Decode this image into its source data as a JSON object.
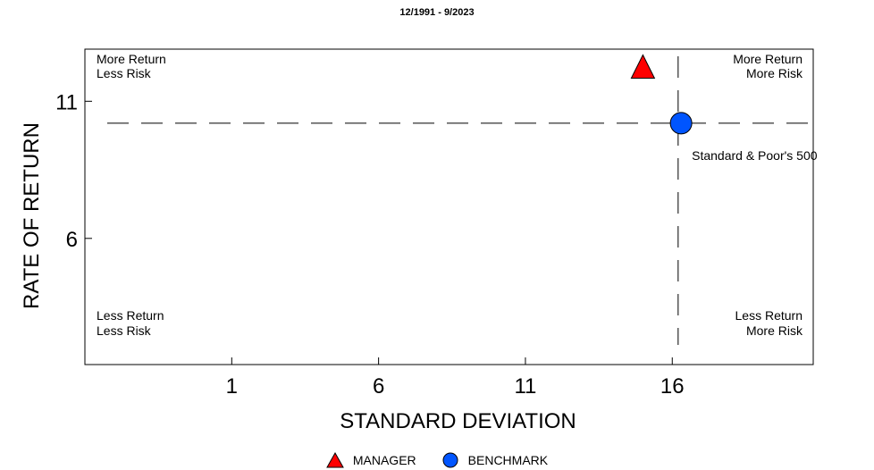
{
  "chart_data": {
    "type": "scatter",
    "subtitle": "12/1991 - 9/2023",
    "xlabel": "STANDARD DEVIATION",
    "ylabel": "RATE OF RETURN",
    "xlim": [
      -4,
      20.8
    ],
    "ylim": [
      1.4,
      12.9
    ],
    "xticks": [
      1,
      6,
      11,
      16
    ],
    "yticks": [
      6,
      11
    ],
    "grid": false,
    "legend_position": "bottom-center",
    "quadrants": {
      "top_left": [
        "More Return",
        "Less Risk"
      ],
      "top_right": [
        "More Return",
        "More Risk"
      ],
      "bottom_left": [
        "Less Return",
        "Less Risk"
      ],
      "bottom_right": [
        "Less Return",
        "More Risk"
      ]
    },
    "reference_lines": {
      "x": 16.2,
      "y": 10.2
    },
    "series": [
      {
        "name": "MANAGER",
        "marker": "triangle",
        "color": "#ff0000",
        "points": [
          {
            "x": 15.0,
            "y": 12.2,
            "label": ""
          }
        ]
      },
      {
        "name": "BENCHMARK",
        "marker": "circle",
        "color": "#0055ff",
        "points": [
          {
            "x": 16.3,
            "y": 10.2,
            "label": "Standard & Poor's 500"
          }
        ]
      }
    ]
  }
}
